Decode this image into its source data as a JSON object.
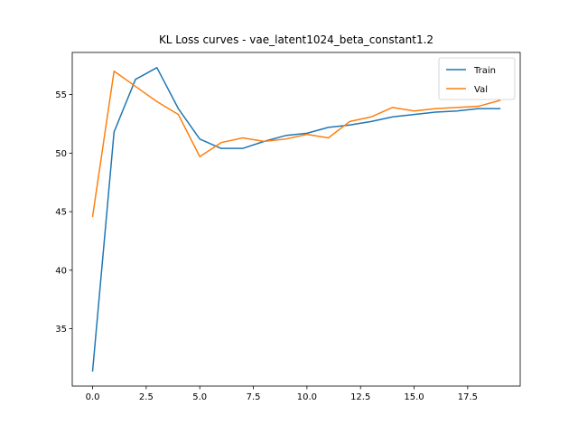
{
  "chart_data": {
    "type": "line",
    "title": "KL Loss curves - vae_latent1024_beta_constant1.2",
    "xlabel": "",
    "ylabel": "",
    "xlim": [
      -0.95,
      19.95
    ],
    "ylim": [
      30.1,
      58.6
    ],
    "x_ticks": [
      0.0,
      2.5,
      5.0,
      7.5,
      10.0,
      12.5,
      15.0,
      17.5
    ],
    "x_tick_labels": [
      "0.0",
      "2.5",
      "5.0",
      "7.5",
      "10.0",
      "12.5",
      "15.0",
      "17.5"
    ],
    "y_ticks": [
      35,
      40,
      45,
      50,
      55
    ],
    "y_tick_labels": [
      "35",
      "40",
      "45",
      "50",
      "55"
    ],
    "grid": false,
    "legend_position": "upper right",
    "x": [
      0,
      1,
      2,
      3,
      4,
      5,
      6,
      7,
      8,
      9,
      10,
      11,
      12,
      13,
      14,
      15,
      16,
      17,
      18,
      19
    ],
    "series": [
      {
        "name": "Train",
        "color": "#1f77b4",
        "values": [
          31.4,
          51.8,
          56.3,
          57.3,
          53.8,
          51.2,
          50.4,
          50.4,
          51.0,
          51.5,
          51.7,
          52.2,
          52.4,
          52.7,
          53.1,
          53.3,
          53.5,
          53.6,
          53.8,
          53.8
        ]
      },
      {
        "name": "Val",
        "color": "#ff7f0e",
        "values": [
          44.6,
          57.0,
          55.7,
          54.4,
          53.3,
          49.7,
          50.9,
          51.3,
          51.0,
          51.2,
          51.6,
          51.3,
          52.7,
          53.1,
          53.9,
          53.6,
          53.8,
          53.9,
          54.0,
          54.5
        ]
      }
    ]
  }
}
